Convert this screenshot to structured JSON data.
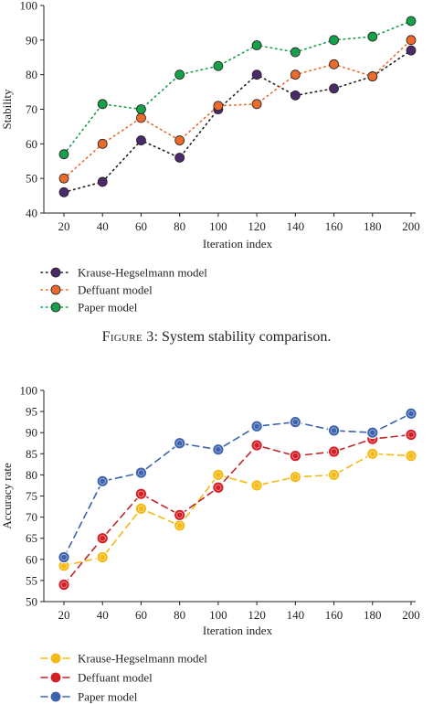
{
  "figure_caption": {
    "label": "Figure 3",
    "text": ": System stability comparison."
  },
  "chart_data": [
    {
      "type": "line",
      "title": "",
      "xlabel": "Iteration index",
      "ylabel": "Stability",
      "x": [
        20,
        40,
        60,
        80,
        100,
        120,
        140,
        160,
        180,
        200
      ],
      "xticks": [
        "20",
        "40",
        "60",
        "80",
        "100",
        "120",
        "140",
        "160",
        "180",
        "200"
      ],
      "ylim": [
        40,
        100
      ],
      "yticks": [
        "40",
        "50",
        "60",
        "70",
        "80",
        "90",
        "100"
      ],
      "grid": false,
      "legend_position": "bottom-left",
      "line_style": "dotted",
      "series": [
        {
          "name": "Krause-Hegselmann model",
          "color": "#4b2a6b",
          "line_color": "#231f20",
          "values": [
            46,
            49,
            61,
            56,
            70,
            80,
            74,
            76,
            79.5,
            87
          ]
        },
        {
          "name": "Deffuant model",
          "color": "#ea6b2c",
          "line_color": "#ea6b2c",
          "values": [
            50,
            60,
            67.5,
            61,
            71,
            71.5,
            80,
            83,
            79.5,
            90
          ]
        },
        {
          "name": "Paper model",
          "color": "#16a04a",
          "line_color": "#16a04a",
          "values": [
            57,
            71.5,
            70,
            80,
            82.5,
            88.5,
            86.5,
            90,
            91,
            95.5
          ]
        }
      ]
    },
    {
      "type": "line",
      "title": "",
      "xlabel": "Iteration index",
      "ylabel": "Accuracy rate",
      "x": [
        20,
        40,
        60,
        80,
        100,
        120,
        140,
        160,
        180,
        200
      ],
      "xticks": [
        "20",
        "40",
        "60",
        "80",
        "100",
        "120",
        "140",
        "160",
        "180",
        "200"
      ],
      "ylim": [
        50,
        100
      ],
      "yticks": [
        "50",
        "55",
        "60",
        "65",
        "70",
        "75",
        "80",
        "85",
        "90",
        "95",
        "100"
      ],
      "grid": false,
      "legend_position": "bottom-left",
      "line_style": "dashed",
      "series": [
        {
          "name": "Krause-Hegselmann model",
          "color": "#f5b914",
          "line_color": "#f5b914",
          "values": [
            58.5,
            60.5,
            72,
            68,
            80,
            77.5,
            79.5,
            80,
            85,
            84.5
          ]
        },
        {
          "name": "Deffuant model",
          "color": "#d32027",
          "line_color": "#c0272d",
          "values": [
            54,
            65,
            75.5,
            70.5,
            77,
            87,
            84.5,
            85.5,
            88.5,
            89.5
          ]
        },
        {
          "name": "Paper model",
          "color": "#3d63ae",
          "line_color": "#3d63ae",
          "values": [
            60.5,
            78.5,
            80.5,
            87.5,
            86,
            91.5,
            92.5,
            90.5,
            90,
            94.5
          ]
        }
      ]
    }
  ]
}
